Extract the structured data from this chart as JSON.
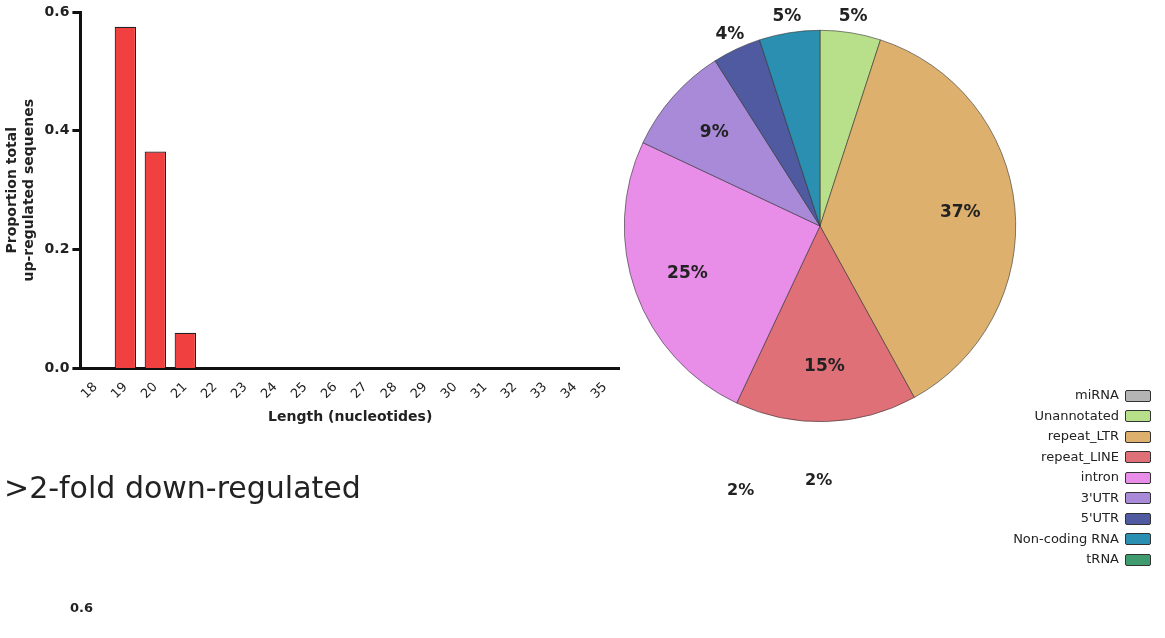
{
  "chart_data": [
    {
      "type": "bar",
      "xlabel": "Length (nucleotides)",
      "ylabel": "Proportion total\nup-regulated sequenes",
      "categories": [
        "18",
        "19",
        "20",
        "21",
        "22",
        "23",
        "24",
        "25",
        "26",
        "27",
        "28",
        "29",
        "30",
        "31",
        "32",
        "33",
        "34",
        "35"
      ],
      "values": [
        0,
        0.575,
        0.365,
        0.06,
        0,
        0,
        0,
        0,
        0,
        0,
        0,
        0,
        0,
        0,
        0,
        0,
        0,
        0
      ],
      "color": "#f04040",
      "ylim": [
        0,
        0.6
      ],
      "yticks": [
        {
          "value": 0,
          "label": "0.0"
        },
        {
          "value": 0.2,
          "label": "0.2"
        },
        {
          "value": 0.4,
          "label": "0.4"
        },
        {
          "value": 0.6,
          "label": "0.6"
        }
      ],
      "grid": false
    },
    {
      "type": "pie",
      "legend": "bottom right",
      "categories": [
        "miRNA",
        "Unannotated",
        "repeat_LTR",
        "repeat_LINE",
        "intron",
        "3'UTR",
        "5'UTR",
        "Non-coding RNA",
        "tRNA"
      ],
      "values": [
        0,
        5,
        37,
        15,
        25,
        9,
        4,
        5,
        0
      ],
      "colors": [
        "#b4b4b4",
        "#b8e08a",
        "#deb06e",
        "#e07078",
        "#e88ee8",
        "#a88ad8",
        "#4f5aa0",
        "#2a8fb0",
        "#3f9a6e"
      ],
      "value_labels": [
        null,
        "5%",
        "37%",
        "15%",
        "25%",
        "9%",
        "4%",
        "5%",
        null
      ]
    },
    {
      "type": "other",
      "title": ">2-fold down-regulated",
      "annotations": [
        "2%",
        "2%",
        "0.6"
      ]
    }
  ]
}
